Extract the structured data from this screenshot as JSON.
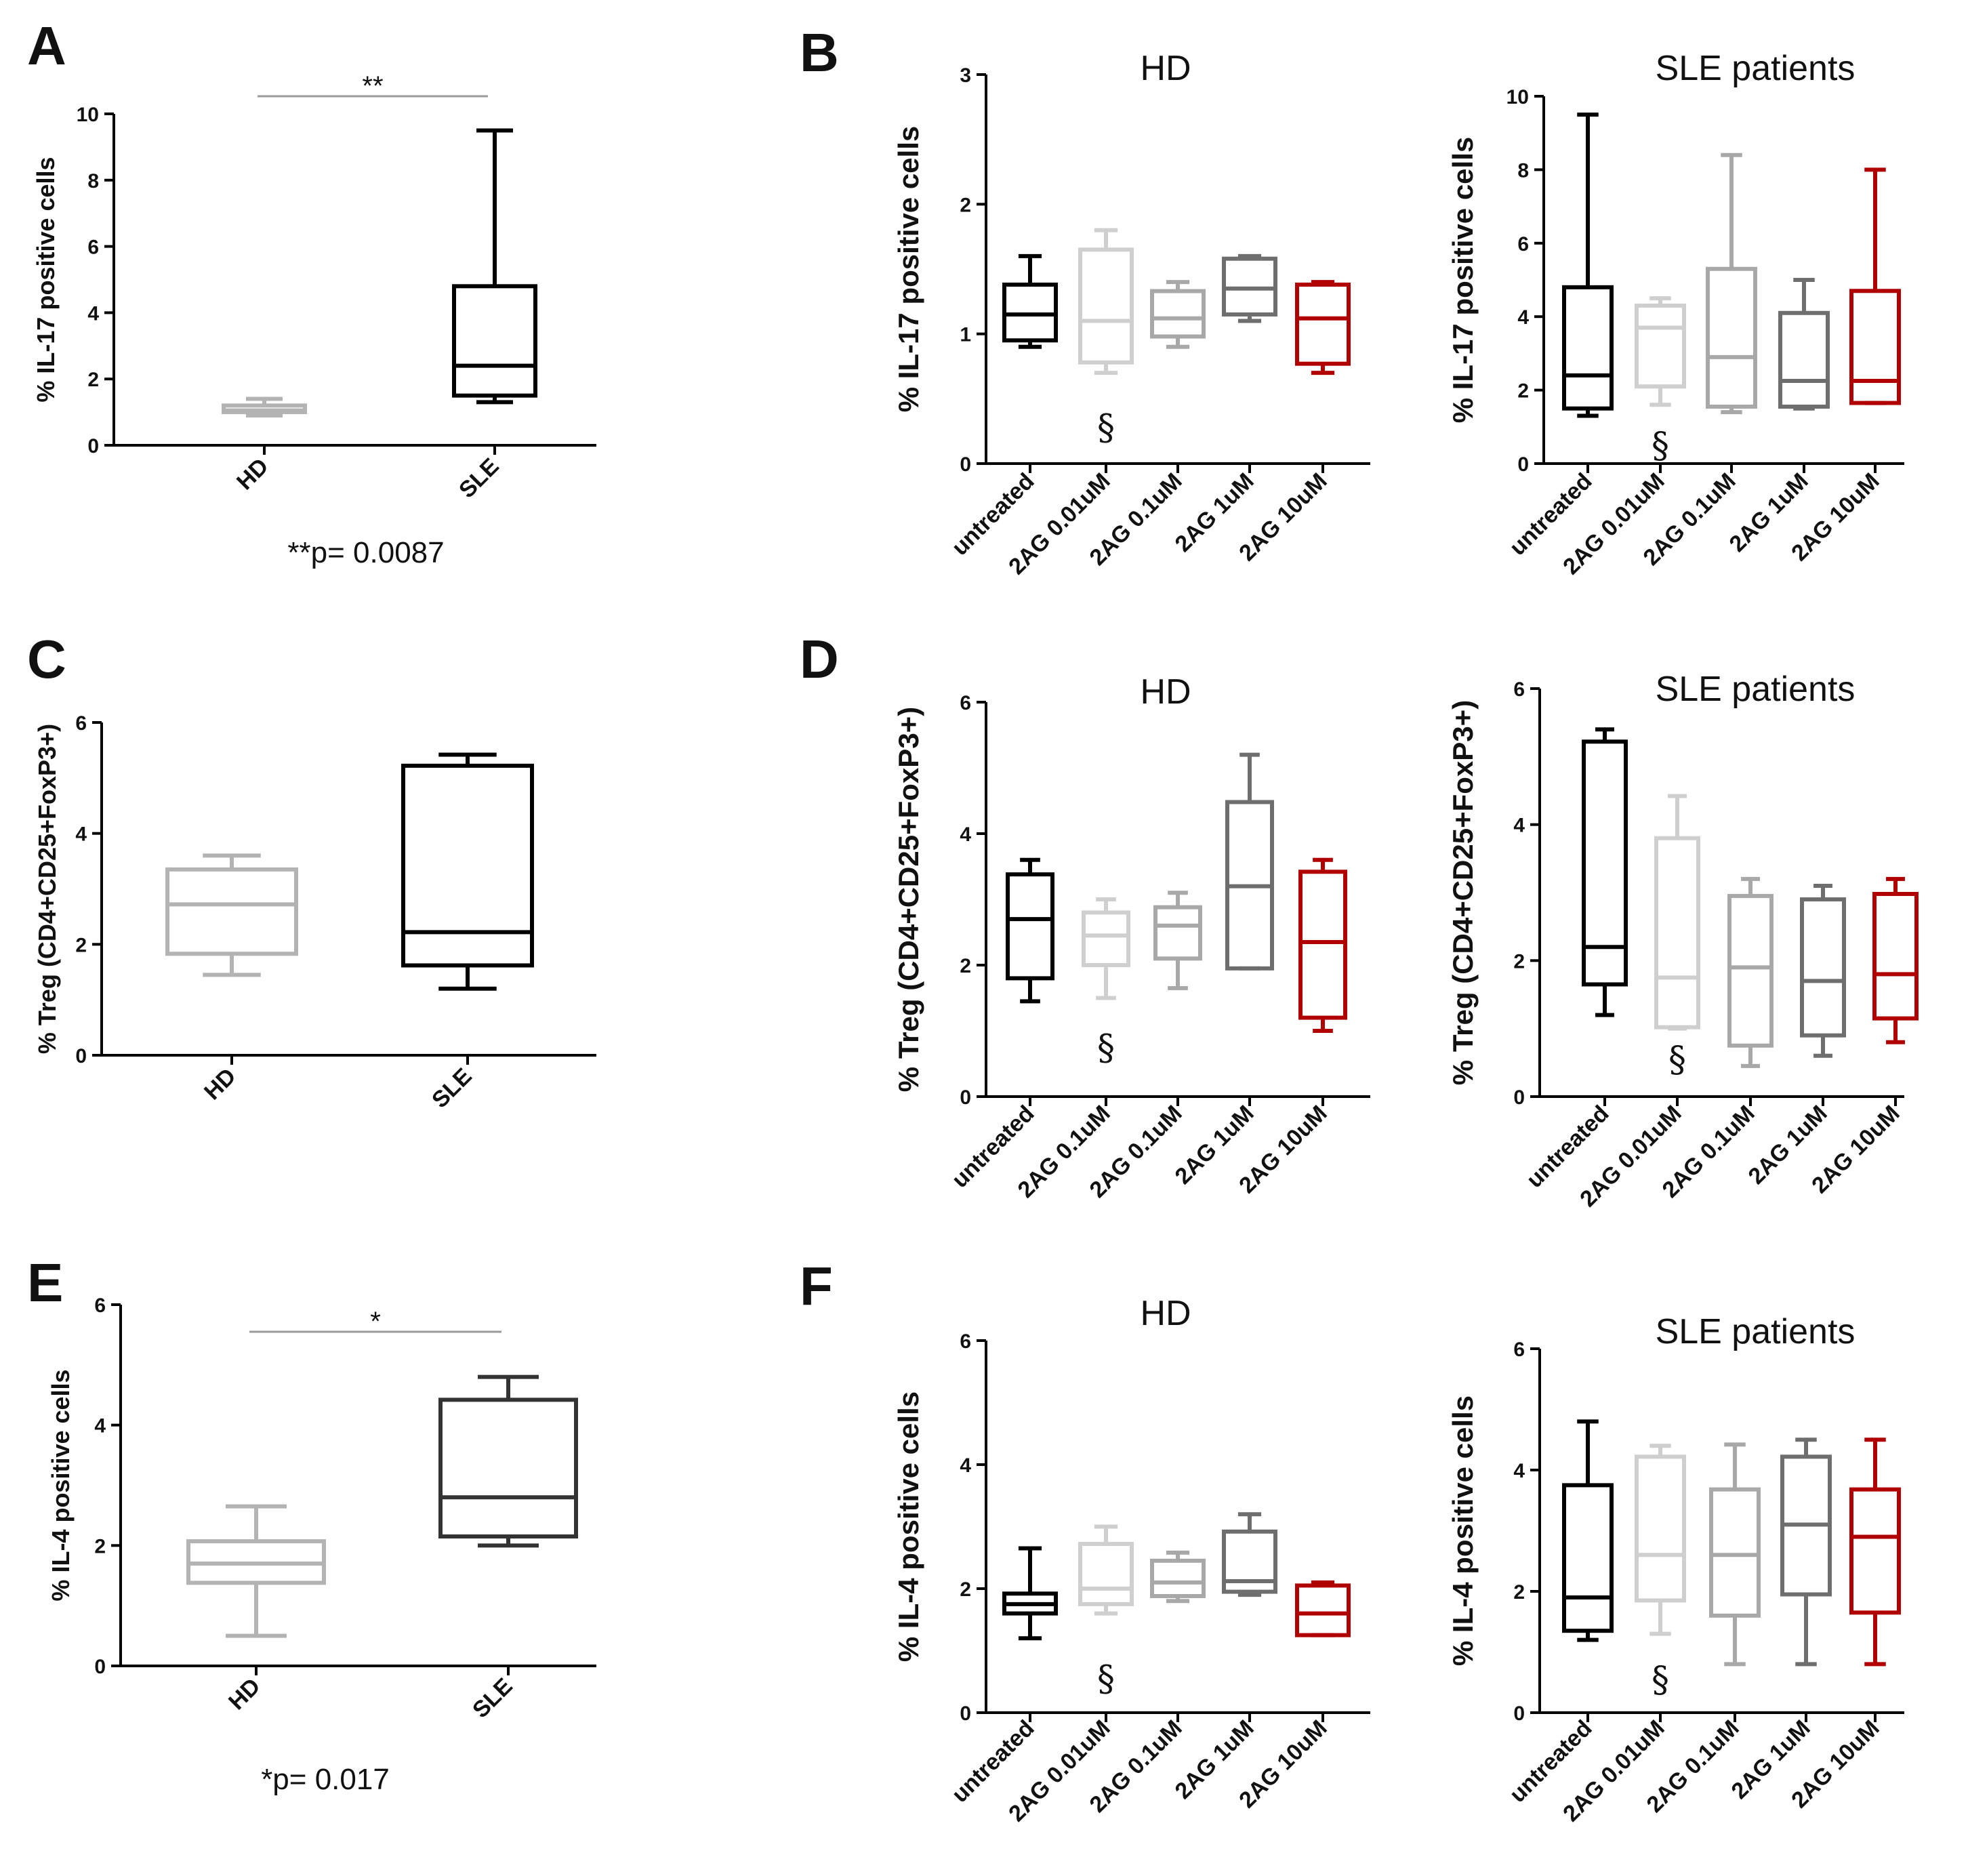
{
  "colors": {
    "black": "#000000",
    "light_gray": "#cfcfcf",
    "mid_gray": "#a8a8a8",
    "dark_gray": "#6e6e6e",
    "hd_gray": "#b3b3b3",
    "sle_dark": "#333333",
    "red": "#b00000",
    "sig_line": "#9a9a9a"
  },
  "panels": {
    "A": {
      "letter": "A",
      "significance": "**",
      "p_note": "**p= 0.0087"
    },
    "B": {
      "letter": "B"
    },
    "C": {
      "letter": "C"
    },
    "D": {
      "letter": "D"
    },
    "E": {
      "letter": "E",
      "significance": "*",
      "p_note": "*p= 0.017"
    },
    "F": {
      "letter": "F"
    }
  },
  "section_symbol": "§",
  "chart_data": [
    {
      "id": "A",
      "type": "boxplot",
      "title": "",
      "ylabel": "% IL-17 positive cells",
      "ylim": [
        0,
        10
      ],
      "yticks": [
        0,
        2,
        4,
        6,
        8,
        10
      ],
      "categories": [
        "HD",
        "SLE"
      ],
      "series": [
        {
          "name": "HD",
          "color": "hd_gray",
          "min": 0.9,
          "q1": 1.0,
          "median": 1.05,
          "q3": 1.2,
          "max": 1.4
        },
        {
          "name": "SLE",
          "color": "black",
          "min": 1.3,
          "q1": 1.5,
          "median": 2.4,
          "q3": 4.8,
          "max": 9.5
        }
      ],
      "significance": {
        "label": "**",
        "from": 0,
        "to": 1,
        "y": 10.5
      },
      "annotation": "**p= 0.0087"
    },
    {
      "id": "B1",
      "type": "boxplot",
      "title": "HD",
      "ylabel": "% IL-17 positive cells",
      "ylim": [
        0,
        3
      ],
      "yticks": [
        0,
        1,
        2,
        3
      ],
      "categories": [
        "untreated",
        "2AG 0.01uM",
        "2AG 0.1uM",
        "2AG 1uM",
        "2AG 10uM"
      ],
      "series": [
        {
          "name": "untreated",
          "color": "black",
          "min": 0.9,
          "q1": 0.95,
          "median": 1.15,
          "q3": 1.38,
          "max": 1.6
        },
        {
          "name": "2AG 0.01uM",
          "color": "light_gray",
          "min": 0.7,
          "q1": 0.78,
          "median": 1.1,
          "q3": 1.65,
          "max": 1.8
        },
        {
          "name": "2AG 0.1uM",
          "color": "mid_gray",
          "min": 0.9,
          "q1": 0.98,
          "median": 1.12,
          "q3": 1.33,
          "max": 1.4
        },
        {
          "name": "2AG 1uM",
          "color": "dark_gray",
          "min": 1.1,
          "q1": 1.15,
          "median": 1.35,
          "q3": 1.58,
          "max": 1.6
        },
        {
          "name": "2AG 10uM",
          "color": "red",
          "min": 0.7,
          "q1": 0.77,
          "median": 1.12,
          "q3": 1.38,
          "max": 1.4
        }
      ],
      "marker": {
        "symbol": "§",
        "category": 1,
        "y": 0.28
      }
    },
    {
      "id": "B2",
      "type": "boxplot",
      "title": "SLE patients",
      "ylabel": "% IL-17 positive cells",
      "ylim": [
        0,
        10
      ],
      "yticks": [
        0,
        2,
        4,
        6,
        8,
        10
      ],
      "categories": [
        "untreated",
        "2AG 0.01uM",
        "2AG 0.1uM",
        "2AG 1uM",
        "2AG 10uM"
      ],
      "series": [
        {
          "name": "untreated",
          "color": "black",
          "min": 1.3,
          "q1": 1.5,
          "median": 2.4,
          "q3": 4.8,
          "max": 9.5
        },
        {
          "name": "2AG 0.01uM",
          "color": "light_gray",
          "min": 1.6,
          "q1": 2.1,
          "median": 3.7,
          "q3": 4.3,
          "max": 4.5
        },
        {
          "name": "2AG 0.1uM",
          "color": "mid_gray",
          "min": 1.4,
          "q1": 1.55,
          "median": 2.9,
          "q3": 5.3,
          "max": 8.4
        },
        {
          "name": "2AG 1uM",
          "color": "dark_gray",
          "min": 1.5,
          "q1": 1.55,
          "median": 2.25,
          "q3": 4.1,
          "max": 5.0
        },
        {
          "name": "2AG 10uM",
          "color": "red",
          "min": 1.65,
          "q1": 1.65,
          "median": 2.25,
          "q3": 4.7,
          "max": 8.0
        }
      ],
      "marker": {
        "symbol": "§",
        "category": 1,
        "y": 0.5
      }
    },
    {
      "id": "C",
      "type": "boxplot",
      "title": "",
      "ylabel": "% Treg (CD4+CD25+FoxP3+)",
      "ylim": [
        0,
        6
      ],
      "yticks": [
        0,
        2,
        4,
        6
      ],
      "categories": [
        "HD",
        "SLE"
      ],
      "series": [
        {
          "name": "HD",
          "color": "hd_gray",
          "min": 1.45,
          "q1": 1.83,
          "median": 2.72,
          "q3": 3.35,
          "max": 3.6
        },
        {
          "name": "SLE",
          "color": "black",
          "min": 1.2,
          "q1": 1.62,
          "median": 2.22,
          "q3": 5.22,
          "max": 5.42
        }
      ]
    },
    {
      "id": "D1",
      "type": "boxplot",
      "title": "HD",
      "ylabel": "% Treg (CD4+CD25+FoxP3+)",
      "ylim": [
        0,
        6
      ],
      "yticks": [
        0,
        2,
        4,
        6
      ],
      "categories": [
        "untreated",
        "2AG 0.1uM",
        "2AG 0.1uM",
        "2AG 1uM",
        "2AG 10uM"
      ],
      "series": [
        {
          "name": "untreated",
          "color": "black",
          "min": 1.45,
          "q1": 1.8,
          "median": 2.7,
          "q3": 3.38,
          "max": 3.6
        },
        {
          "name": "2AG 0.1uM",
          "color": "light_gray",
          "min": 1.5,
          "q1": 2.0,
          "median": 2.45,
          "q3": 2.8,
          "max": 3.0
        },
        {
          "name": "2AG 0.1uM (2)",
          "color": "mid_gray",
          "min": 1.65,
          "q1": 2.1,
          "median": 2.6,
          "q3": 2.88,
          "max": 3.1
        },
        {
          "name": "2AG 1uM",
          "color": "dark_gray",
          "min": 1.95,
          "q1": 1.95,
          "median": 3.2,
          "q3": 4.48,
          "max": 5.2
        },
        {
          "name": "2AG 10uM",
          "color": "red",
          "min": 1.0,
          "q1": 1.2,
          "median": 2.35,
          "q3": 3.42,
          "max": 3.6
        }
      ],
      "marker": {
        "symbol": "§",
        "category": 1,
        "y": 0.75
      }
    },
    {
      "id": "D2",
      "type": "boxplot",
      "title": "SLE patients",
      "ylabel": "% Treg (CD4+CD25+FoxP3+)",
      "ylim": [
        0,
        6
      ],
      "yticks": [
        0,
        2,
        4,
        6
      ],
      "categories": [
        "untreated",
        "2AG 0.01uM",
        "2AG 0.1uM",
        "2AG 1uM",
        "2AG 10uM"
      ],
      "series": [
        {
          "name": "untreated",
          "color": "black",
          "min": 1.2,
          "q1": 1.65,
          "median": 2.2,
          "q3": 5.22,
          "max": 5.4
        },
        {
          "name": "2AG 0.01uM",
          "color": "light_gray",
          "min": 1.0,
          "q1": 1.02,
          "median": 1.75,
          "q3": 3.8,
          "max": 4.42
        },
        {
          "name": "2AG 0.1uM",
          "color": "mid_gray",
          "min": 0.45,
          "q1": 0.75,
          "median": 1.9,
          "q3": 2.95,
          "max": 3.2
        },
        {
          "name": "2AG 1uM",
          "color": "dark_gray",
          "min": 0.6,
          "q1": 0.9,
          "median": 1.7,
          "q3": 2.9,
          "max": 3.1
        },
        {
          "name": "2AG 10uM",
          "color": "red",
          "min": 0.8,
          "q1": 1.15,
          "median": 1.8,
          "q3": 2.98,
          "max": 3.2
        }
      ],
      "marker": {
        "symbol": "§",
        "category": 1,
        "y": 0.55
      }
    },
    {
      "id": "E",
      "type": "boxplot",
      "title": "",
      "ylabel": "% IL-4 positive cells",
      "ylim": [
        0,
        6
      ],
      "yticks": [
        0,
        2,
        4,
        6
      ],
      "categories": [
        "HD",
        "SLE"
      ],
      "series": [
        {
          "name": "HD",
          "color": "hd_gray",
          "min": 0.5,
          "q1": 1.38,
          "median": 1.7,
          "q3": 2.07,
          "max": 2.65
        },
        {
          "name": "SLE",
          "color": "sle_dark",
          "min": 2.0,
          "q1": 2.15,
          "median": 2.8,
          "q3": 4.42,
          "max": 4.8
        }
      ],
      "significance": {
        "label": "*",
        "from": 0,
        "to": 1,
        "y": 5.75
      },
      "annotation": "*p= 0.017"
    },
    {
      "id": "F1",
      "type": "boxplot",
      "title": "HD",
      "ylabel": "% IL-4 positive cells",
      "ylim": [
        0,
        6
      ],
      "yticks": [
        0,
        2,
        4,
        6
      ],
      "categories": [
        "untreated",
        "2AG 0.01uM",
        "2AG 0.1uM",
        "2AG 1uM",
        "2AG 10uM"
      ],
      "series": [
        {
          "name": "untreated",
          "color": "black",
          "min": 1.2,
          "q1": 1.6,
          "median": 1.75,
          "q3": 1.92,
          "max": 2.65
        },
        {
          "name": "2AG 0.01uM",
          "color": "light_gray",
          "min": 1.6,
          "q1": 1.75,
          "median": 2.0,
          "q3": 2.72,
          "max": 3.0
        },
        {
          "name": "2AG 0.1uM",
          "color": "mid_gray",
          "min": 1.8,
          "q1": 1.88,
          "median": 2.1,
          "q3": 2.45,
          "max": 2.58
        },
        {
          "name": "2AG 1uM",
          "color": "dark_gray",
          "min": 1.9,
          "q1": 1.95,
          "median": 2.12,
          "q3": 2.92,
          "max": 3.2
        },
        {
          "name": "2AG 10uM",
          "color": "red",
          "min": 1.25,
          "q1": 1.25,
          "median": 1.6,
          "q3": 2.05,
          "max": 2.1
        }
      ],
      "marker": {
        "symbol": "§",
        "category": 1,
        "y": 0.55
      }
    },
    {
      "id": "F2",
      "type": "boxplot",
      "title": "SLE patients",
      "ylabel": "% IL-4 positive cells",
      "ylim": [
        0,
        6
      ],
      "yticks": [
        0,
        2,
        4,
        6
      ],
      "categories": [
        "untreated",
        "2AG 0.01uM",
        "2AG 0.1uM",
        "2AG 1uM",
        "2AG 10uM"
      ],
      "series": [
        {
          "name": "untreated",
          "color": "black",
          "min": 1.2,
          "q1": 1.35,
          "median": 1.9,
          "q3": 3.75,
          "max": 4.8
        },
        {
          "name": "2AG 0.01uM",
          "color": "light_gray",
          "min": 1.3,
          "q1": 1.85,
          "median": 2.6,
          "q3": 4.22,
          "max": 4.4
        },
        {
          "name": "2AG 0.1uM",
          "color": "mid_gray",
          "min": 0.8,
          "q1": 1.6,
          "median": 2.6,
          "q3": 3.68,
          "max": 4.42
        },
        {
          "name": "2AG 1uM",
          "color": "dark_gray",
          "min": 0.8,
          "q1": 1.95,
          "median": 3.1,
          "q3": 4.22,
          "max": 4.5
        },
        {
          "name": "2AG 10uM",
          "color": "red",
          "min": 0.8,
          "q1": 1.65,
          "median": 2.9,
          "q3": 3.68,
          "max": 4.5
        }
      ],
      "marker": {
        "symbol": "§",
        "category": 1,
        "y": 0.55
      }
    }
  ]
}
